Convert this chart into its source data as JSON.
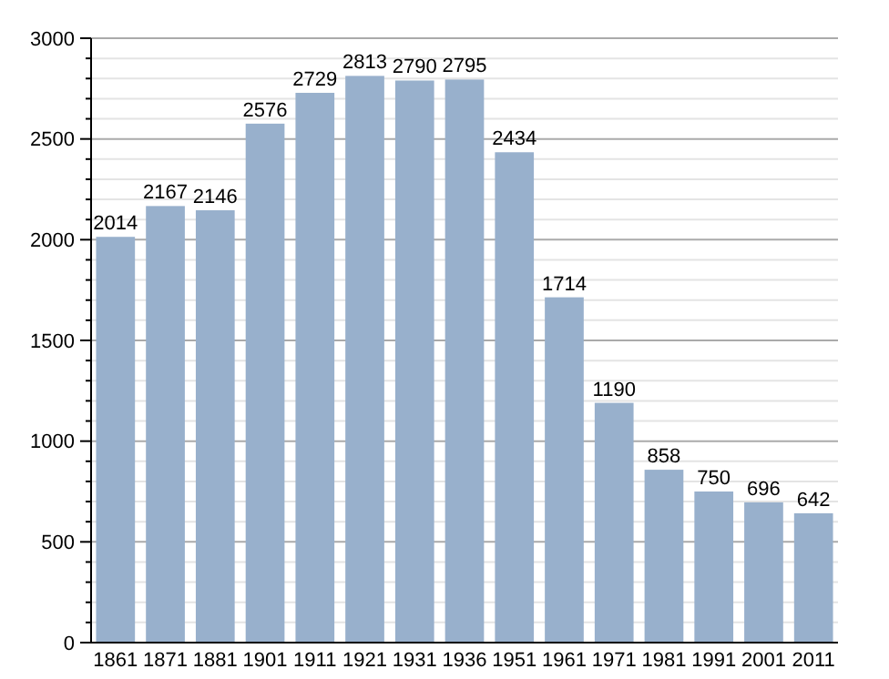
{
  "chart_data": {
    "type": "bar",
    "categories": [
      "1861",
      "1871",
      "1881",
      "1901",
      "1911",
      "1921",
      "1931",
      "1936",
      "1951",
      "1961",
      "1971",
      "1981",
      "1991",
      "2001",
      "2011"
    ],
    "values": [
      2014,
      2167,
      2146,
      2576,
      2729,
      2813,
      2790,
      2795,
      2434,
      1714,
      1190,
      858,
      750,
      696,
      642
    ],
    "color": "#98b0cc",
    "data_labels": true,
    "grid": "y",
    "ylim": [
      0,
      3000
    ],
    "yticks": [
      0,
      {
        "value": 100,
        "label": null
      },
      {
        "value": 200,
        "label": null
      },
      {
        "value": 300,
        "label": null
      },
      {
        "value": 400,
        "label": null
      },
      500,
      {
        "value": 600,
        "label": null
      },
      {
        "value": 700,
        "label": null
      },
      {
        "value": 800,
        "label": null
      },
      {
        "value": 900,
        "label": null
      },
      1000,
      {
        "value": 1100,
        "label": null
      },
      {
        "value": 1200,
        "label": null
      },
      {
        "value": 1300,
        "label": null
      },
      {
        "value": 1400,
        "label": null
      },
      1500,
      {
        "value": 1600,
        "label": null
      },
      {
        "value": 1700,
        "label": null
      },
      {
        "value": 1800,
        "label": null
      },
      {
        "value": 1900,
        "label": null
      },
      2000,
      {
        "value": 2100,
        "label": null
      },
      {
        "value": 2200,
        "label": null
      },
      {
        "value": 2300,
        "label": null
      },
      {
        "value": 2400,
        "label": null
      },
      2500,
      {
        "value": 2600,
        "label": null
      },
      {
        "value": 2700,
        "label": null
      },
      {
        "value": 2800,
        "label": null
      },
      {
        "value": 2900,
        "label": null
      },
      3000
    ]
  }
}
